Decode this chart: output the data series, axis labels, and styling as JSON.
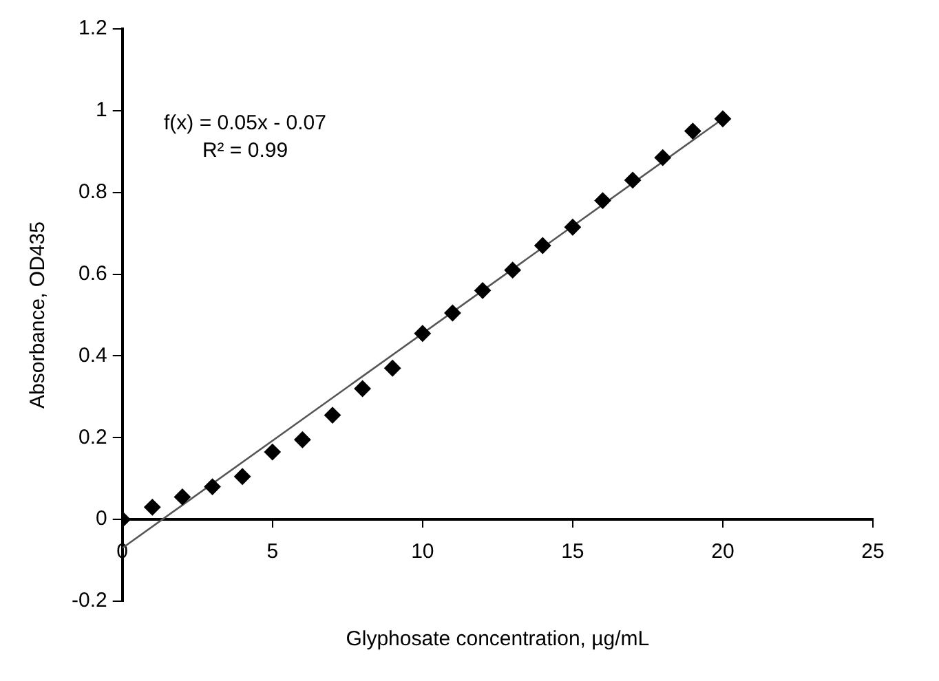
{
  "chart_data": {
    "type": "scatter",
    "xlabel": "Glyphosate concentration, µg/mL",
    "ylabel": "Absorbance, OD435",
    "annotations": [
      "f(x) = 0.05x - 0.07",
      "R² = 0.99"
    ],
    "xlim": [
      0,
      25
    ],
    "xticks": [
      0,
      5,
      10,
      15,
      20,
      25
    ],
    "ylim": [
      -0.2,
      1.2
    ],
    "yticks": [
      -0.2,
      0,
      0.2,
      0.4,
      0.6,
      0.8,
      1,
      1.2
    ],
    "grid": false,
    "legend": false,
    "marker": "diamond",
    "series": [
      {
        "type": "scatter",
        "color": "#000000",
        "x": [
          0,
          1,
          2,
          3,
          4,
          5,
          6,
          7,
          8,
          9,
          10,
          11,
          12,
          13,
          14,
          15,
          16,
          17,
          18,
          19,
          20
        ],
        "values": [
          0,
          0.03,
          0.055,
          0.08,
          0.105,
          0.165,
          0.195,
          0.255,
          0.32,
          0.37,
          0.455,
          0.505,
          0.56,
          0.61,
          0.67,
          0.715,
          0.78,
          0.83,
          0.885,
          0.95,
          0.98
        ]
      },
      {
        "type": "line",
        "color": "#555555",
        "marker": "none",
        "x": [
          0,
          20
        ],
        "values": [
          -0.07,
          0.98
        ]
      }
    ]
  }
}
